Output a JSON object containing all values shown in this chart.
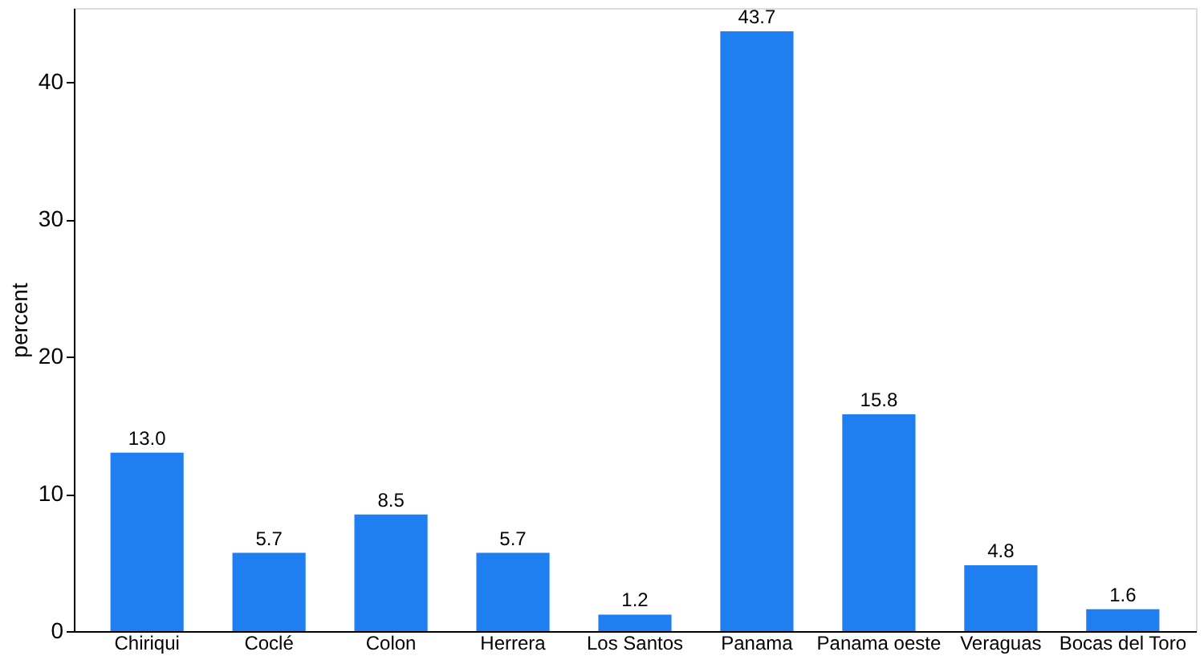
{
  "chart_data": {
    "type": "bar",
    "categories": [
      "Chiriqui",
      "Coclé",
      "Colon",
      "Herrera",
      "Los Santos",
      "Panama",
      "Panama oeste",
      "Veraguas",
      "Bocas del Toro"
    ],
    "values": [
      13.0,
      5.7,
      8.5,
      5.7,
      1.2,
      43.7,
      15.8,
      4.8,
      1.6
    ],
    "color": "#1f7ff0",
    "ylabel": "percent",
    "ylim": [
      0,
      45.4
    ],
    "yticks": [
      0,
      10,
      20,
      30,
      40
    ],
    "value_labels": [
      "13.0",
      "5.7",
      "8.5",
      "5.7",
      "1.2",
      "43.7",
      "15.8",
      "4.8",
      "1.6"
    ],
    "grid": false
  }
}
